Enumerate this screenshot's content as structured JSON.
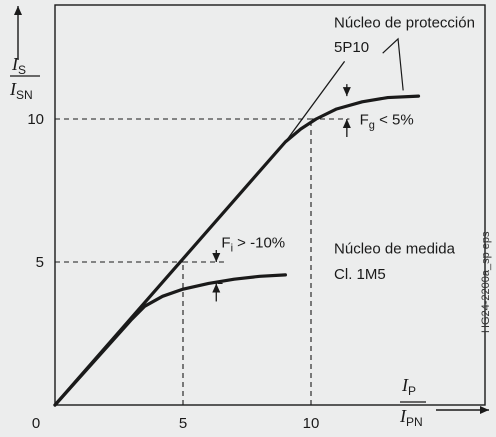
{
  "figure_id": "HG24-2200a_sp eps",
  "chart_data": {
    "type": "line",
    "xlabel": {
      "num_symbol": "I",
      "num_sub": "P",
      "den_symbol": "I",
      "den_sub": "PN"
    },
    "ylabel": {
      "num_symbol": "I",
      "num_sub": "S",
      "den_symbol": "I",
      "den_sub": "SN"
    },
    "xlim": [
      0,
      16.8
    ],
    "ylim": [
      0,
      14.5
    ],
    "x_ticks": [
      {
        "value": 0,
        "label": "0"
      },
      {
        "value": 5,
        "label": "5"
      },
      {
        "value": 10,
        "label": "10"
      }
    ],
    "y_ticks": [
      {
        "value": 5,
        "label": "5"
      },
      {
        "value": 10,
        "label": "10"
      }
    ],
    "series": [
      {
        "points": [
          [
            0,
            0
          ],
          [
            3,
            3
          ],
          [
            3.5,
            3.45
          ],
          [
            4.2,
            3.8
          ],
          [
            5,
            4.05
          ],
          [
            6,
            4.25
          ],
          [
            7,
            4.4
          ],
          [
            8,
            4.5
          ],
          [
            9,
            4.55
          ]
        ]
      },
      {
        "points": [
          [
            0,
            0
          ],
          [
            9,
            9.2
          ],
          [
            9.6,
            9.65
          ],
          [
            10.2,
            10.0
          ],
          [
            11,
            10.35
          ],
          [
            12,
            10.6
          ],
          [
            13,
            10.75
          ],
          [
            14.2,
            10.8
          ]
        ]
      },
      {
        "points": [
          [
            9,
            9.2
          ],
          [
            11.3,
            12.0
          ]
        ]
      }
    ],
    "guides": [
      {
        "from": [
          0,
          5
        ],
        "to": [
          5,
          5
        ]
      },
      {
        "from": [
          0,
          10
        ],
        "to": [
          10,
          10
        ]
      },
      {
        "from": [
          5,
          0
        ],
        "to": [
          5,
          5
        ]
      },
      {
        "from": [
          10,
          0
        ],
        "to": [
          10,
          10
        ]
      },
      {
        "from": [
          10,
          10
        ],
        "to": [
          11.5,
          10
        ]
      },
      {
        "from": [
          5,
          5
        ],
        "to": [
          6.6,
          5
        ]
      },
      {
        "from": [
          6,
          4.25
        ],
        "to": [
          6.6,
          4.25
        ]
      }
    ],
    "annotations": [
      {
        "text": "Núcleo de protección",
        "at": [
          10.9,
          13.2
        ]
      },
      {
        "text": "5P10",
        "at": [
          10.9,
          12.35
        ]
      },
      {
        "text": "Núcleo de medida",
        "at": [
          10.9,
          5.3
        ]
      },
      {
        "text": "Cl. 1M5",
        "at": [
          10.9,
          4.4
        ]
      }
    ],
    "tolerances": [
      {
        "symbol": "F",
        "sub": "g",
        "rest": " < 5%",
        "x": 11.4,
        "y_top": 10.8,
        "y_bot": 10,
        "label_at": [
          11.9,
          9.8
        ]
      },
      {
        "symbol": "F",
        "sub": "i",
        "rest": " > -10%",
        "x": 6.3,
        "y_top": 5,
        "y_bot": 4.25,
        "label_at": [
          6.5,
          5.5
        ]
      }
    ],
    "leader": {
      "from": [
        12.8,
        12.3
      ],
      "via": [
        13.4,
        12.8
      ],
      "to": [
        13.6,
        11
      ]
    }
  }
}
